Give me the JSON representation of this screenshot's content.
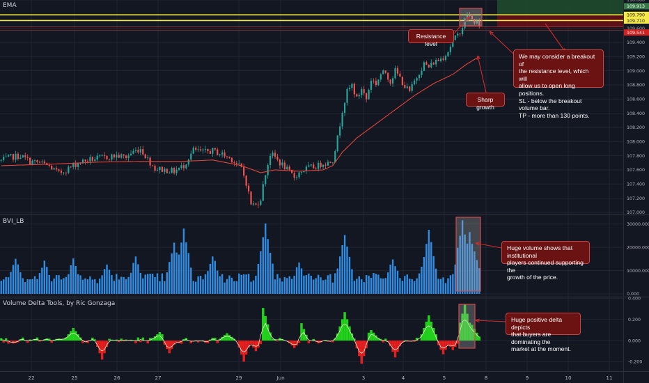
{
  "indicators": {
    "main": "EMA",
    "volume": "BVI_LB",
    "delta": "Volume Delta Tools, by Ric Gonzaga"
  },
  "annotations": {
    "resistance": "Resistance level",
    "breakout": "We may consider a breakout of\nthe resistance level, which will\nallow us to open long positions.\nSL - below the breakout volume bar.\nTP - more than 130 points.",
    "sharp_growth": "Sharp growth",
    "huge_volume": "Huge volume shows that institutional\nplayers continued supporting the\ngrowth of the price.",
    "huge_delta": "Huge positive delta depicts\nthat buyers are dominating the\nmarket at the moment."
  },
  "colors": {
    "background": "#131722",
    "grid": "#222633",
    "up": "#26a69a",
    "down": "#ef5350",
    "ema": "#e0453a",
    "volume": "#2f8de4",
    "delta_pos": "#22d11b",
    "delta_neg": "#e21e1e",
    "resistance": "#f5e84a",
    "highlight": "#b4b4b4"
  },
  "chart_data": [
    {
      "id": "price",
      "type": "candlestick",
      "indicator": "EMA",
      "x_ticks": [
        "22",
        "25",
        "26",
        "27",
        "29",
        "Jun",
        "3",
        "4",
        "5",
        "8",
        "9",
        "10",
        "11"
      ],
      "y_ticks": [
        "110.000",
        "109.600",
        "109.400",
        "109.200",
        "109.000",
        "108.800",
        "108.600",
        "108.400",
        "108.200",
        "108.000",
        "107.800",
        "107.600",
        "107.400",
        "107.200",
        "107.000"
      ],
      "ylim": [
        106.97,
        110.0
      ],
      "price_labels": [
        {
          "label": "109.913",
          "value": 109.913,
          "color": "#3a7a4a"
        },
        {
          "label": "109.790",
          "value": 109.79,
          "color": "#f5e84a"
        },
        {
          "label": "109.710",
          "value": 109.71,
          "color": "#f5e84a"
        },
        {
          "label": "109.541",
          "value": 109.541,
          "color": "#d42020"
        }
      ],
      "resistance_levels": [
        109.79,
        109.71
      ],
      "stop_level": 109.62,
      "target_zone": [
        109.62,
        110.0
      ],
      "close_path": [
        [
          0,
          107.73
        ],
        [
          4,
          107.78
        ],
        [
          8,
          107.8
        ],
        [
          12,
          107.72
        ],
        [
          16,
          107.7
        ],
        [
          20,
          107.65
        ],
        [
          24,
          107.55
        ],
        [
          28,
          107.62
        ],
        [
          32,
          107.7
        ],
        [
          36,
          107.74
        ],
        [
          40,
          107.76
        ],
        [
          44,
          107.78
        ],
        [
          48,
          107.8
        ],
        [
          52,
          107.78
        ],
        [
          55,
          107.86
        ],
        [
          58,
          107.9
        ],
        [
          61,
          107.75
        ],
        [
          64,
          107.62
        ],
        [
          68,
          107.6
        ],
        [
          72,
          107.58
        ],
        [
          76,
          107.66
        ],
        [
          80,
          107.88
        ],
        [
          84,
          107.85
        ],
        [
          88,
          107.87
        ],
        [
          92,
          107.82
        ],
        [
          96,
          107.75
        ],
        [
          100,
          107.62
        ],
        [
          102,
          107.42
        ],
        [
          104,
          107.12
        ],
        [
          106,
          107.1
        ],
        [
          108,
          107.2
        ],
        [
          110,
          107.55
        ],
        [
          112,
          107.82
        ],
        [
          114,
          107.78
        ],
        [
          116,
          107.7
        ],
        [
          118,
          107.64
        ],
        [
          120,
          107.56
        ],
        [
          122,
          107.5
        ],
        [
          124,
          107.56
        ],
        [
          126,
          107.6
        ],
        [
          128,
          107.63
        ],
        [
          130,
          107.64
        ],
        [
          132,
          107.66
        ],
        [
          134,
          107.7
        ],
        [
          136,
          107.7
        ],
        [
          138,
          107.75
        ],
        [
          140,
          108.05
        ],
        [
          142,
          108.45
        ],
        [
          144,
          108.7
        ],
        [
          146,
          108.8
        ],
        [
          148,
          108.6
        ],
        [
          150,
          108.75
        ],
        [
          152,
          108.6
        ],
        [
          154,
          108.88
        ],
        [
          156,
          108.82
        ],
        [
          158,
          108.95
        ],
        [
          160,
          108.98
        ],
        [
          162,
          108.85
        ],
        [
          164,
          109.0
        ],
        [
          166,
          108.9
        ],
        [
          168,
          108.78
        ],
        [
          170,
          108.7
        ],
        [
          172,
          108.85
        ],
        [
          174,
          108.98
        ],
        [
          176,
          109.1
        ],
        [
          178,
          109.05
        ],
        [
          180,
          109.12
        ],
        [
          182,
          109.15
        ],
        [
          184,
          109.2
        ],
        [
          186,
          109.28
        ],
        [
          188,
          109.42
        ],
        [
          190,
          109.5
        ],
        [
          192,
          109.62
        ],
        [
          194,
          109.8
        ],
        [
          196,
          109.72
        ],
        [
          198,
          109.68
        ],
        [
          199,
          109.6
        ]
      ],
      "ema_path": [
        [
          0,
          107.66
        ],
        [
          20,
          107.68
        ],
        [
          40,
          107.71
        ],
        [
          60,
          107.72
        ],
        [
          75,
          107.72
        ],
        [
          88,
          107.74
        ],
        [
          100,
          107.66
        ],
        [
          108,
          107.56
        ],
        [
          114,
          107.6
        ],
        [
          124,
          107.58
        ],
        [
          134,
          107.6
        ],
        [
          138,
          107.66
        ],
        [
          142,
          107.85
        ],
        [
          148,
          108.05
        ],
        [
          156,
          108.25
        ],
        [
          164,
          108.45
        ],
        [
          172,
          108.65
        ],
        [
          180,
          108.82
        ],
        [
          188,
          108.95
        ],
        [
          194,
          109.1
        ],
        [
          199,
          109.2
        ]
      ]
    },
    {
      "id": "volume",
      "type": "bar",
      "indicator": "BVI_LB",
      "y_ticks": [
        "30000.000",
        "20000.000",
        "10000.000",
        "0.000"
      ],
      "ylim": [
        0,
        32000
      ],
      "spikes": [
        [
          6,
          15000
        ],
        [
          18,
          13000
        ],
        [
          30,
          14000
        ],
        [
          44,
          12000
        ],
        [
          56,
          15000
        ],
        [
          72,
          21000
        ],
        [
          76,
          27000
        ],
        [
          88,
          16000
        ],
        [
          110,
          29000
        ],
        [
          124,
          13000
        ],
        [
          143,
          25000
        ],
        [
          163,
          14000
        ],
        [
          178,
          26000
        ],
        [
          192,
          31000
        ],
        [
          195,
          26000
        ],
        [
          197,
          18000
        ]
      ]
    },
    {
      "id": "delta",
      "type": "area",
      "indicator": "Volume Delta Tools, by Ric Gonzaga",
      "y_ticks": [
        "0.400",
        "0.200",
        "0.000",
        "-0.200"
      ],
      "ylim": [
        -0.27,
        0.41
      ],
      "pos_spikes": [
        [
          30,
          0.12
        ],
        [
          66,
          0.08
        ],
        [
          94,
          0.07
        ],
        [
          109,
          0.31
        ],
        [
          124,
          0.22
        ],
        [
          143,
          0.27
        ],
        [
          154,
          0.1
        ],
        [
          178,
          0.24
        ],
        [
          193,
          0.34
        ],
        [
          196,
          0.15
        ]
      ],
      "neg_spikes": [
        [
          42,
          -0.18
        ],
        [
          70,
          -0.12
        ],
        [
          101,
          -0.2
        ],
        [
          106,
          -0.1
        ],
        [
          122,
          -0.07
        ],
        [
          150,
          -0.22
        ],
        [
          164,
          -0.16
        ],
        [
          184,
          -0.13
        ],
        [
          188,
          -0.09
        ]
      ]
    }
  ]
}
